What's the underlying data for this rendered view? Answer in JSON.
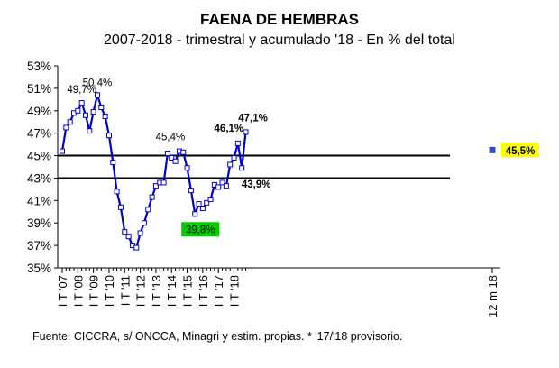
{
  "chart_data": {
    "type": "line",
    "title": "FAENA DE HEMBRAS",
    "subtitle": "2007-2018 - trimestral y acumulado '18 - En % del total",
    "source": "Fuente: CICCRA, s/ ONCCA, Minagri y estim. propias. * '17/'18 provisorio.",
    "ylim": [
      35,
      53
    ],
    "yticks": [
      "35%",
      "37%",
      "39%",
      "41%",
      "43%",
      "45%",
      "47%",
      "49%",
      "51%",
      "53%"
    ],
    "xlabels": [
      "I T '07",
      "I T '08",
      "I T '09",
      "I T '10",
      "I T '11",
      "I T '12",
      "I T '13",
      "I T '14",
      "I T '15",
      "I T '16",
      "I T '17",
      "I T '18",
      "12 m 18"
    ],
    "series": [
      {
        "values": [
          45.4,
          47.5,
          48.0,
          48.8,
          49.0,
          49.7,
          48.6,
          47.2,
          48.9,
          50.4,
          49.3,
          48.5,
          46.8,
          44.4,
          41.8,
          40.4,
          38.2,
          37.8,
          37.0,
          36.8,
          38.1,
          39.0,
          40.2,
          41.3,
          42.3,
          42.6,
          42.6,
          45.2,
          44.8,
          44.5,
          45.4,
          45.3,
          43.9,
          41.9,
          39.8,
          40.7,
          40.3,
          40.8,
          41.1,
          42.4,
          42.2,
          42.6,
          42.3,
          44.2,
          44.8,
          46.1,
          43.9,
          47.1
        ]
      }
    ],
    "reference_lines": [
      45,
      43
    ],
    "accumulated_value": 45.5,
    "accumulated_label": "45,5%",
    "annotations": [
      {
        "index": 5,
        "label": "49,7%",
        "bold": false
      },
      {
        "index": 9,
        "label": "50,4%",
        "bold": false
      },
      {
        "index": 30,
        "label": "45,4%",
        "bold": false
      },
      {
        "index": 34,
        "label": "39,8%",
        "bold": false
      },
      {
        "index": 45,
        "label": "46,1%",
        "bold": true
      },
      {
        "index": 46,
        "label": "43,9%",
        "bold": true
      },
      {
        "index": 47,
        "label": "47,1%",
        "bold": true
      }
    ],
    "colors": {
      "line": "#0000cc",
      "reference": "#000000",
      "accumulated_marker": "#3355cc",
      "highlight_low": "#00cc00",
      "highlight_acc": "#ffff00"
    },
    "grid": false
  }
}
